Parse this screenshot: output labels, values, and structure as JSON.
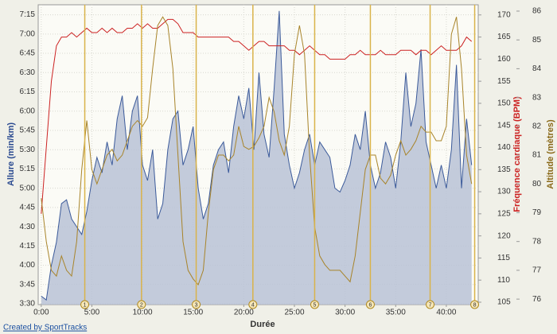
{
  "chart_data": {
    "type": "line",
    "grid": true,
    "xlabel": "Durée",
    "ylabel": "Allure (min/km)",
    "y2label": "Fréquence cardiaque (BPM)",
    "y3label": "Altitude (mètres)",
    "footer": "Created by SportTracks",
    "xlim": [
      -0.3,
      43.15
    ],
    "xticks": [
      {
        "value": 0,
        "label": "0:00"
      },
      {
        "value": 5,
        "label": "5:00"
      },
      {
        "value": 10,
        "label": "10:00"
      },
      {
        "value": 15,
        "label": "15:00"
      },
      {
        "value": 20,
        "label": "20:00"
      },
      {
        "value": 25,
        "label": "25:00"
      },
      {
        "value": 30,
        "label": "30:00"
      },
      {
        "value": 35,
        "label": "35:00"
      },
      {
        "value": 40,
        "label": "40:00"
      }
    ],
    "ylim": [
      3.49,
      7.38
    ],
    "yticks": [
      {
        "value": 3.5,
        "label": "3:30"
      },
      {
        "value": 3.75,
        "label": "3:45"
      },
      {
        "value": 4,
        "label": "4:00"
      },
      {
        "value": 4.25,
        "label": "4:15"
      },
      {
        "value": 4.5,
        "label": "4:30"
      },
      {
        "value": 4.75,
        "label": "4:45"
      },
      {
        "value": 5,
        "label": "5:00"
      },
      {
        "value": 5.25,
        "label": "5:15"
      },
      {
        "value": 5.5,
        "label": "5:30"
      },
      {
        "value": 5.75,
        "label": "5:45"
      },
      {
        "value": 6,
        "label": "6:00"
      },
      {
        "value": 6.25,
        "label": "6:15"
      },
      {
        "value": 6.5,
        "label": "6:30"
      },
      {
        "value": 6.75,
        "label": "6:45"
      },
      {
        "value": 7,
        "label": "7:00"
      },
      {
        "value": 7.25,
        "label": "7:15"
      }
    ],
    "y2lim": [
      104.46,
      172.3
    ],
    "y2ticks": [
      105,
      110,
      115,
      120,
      125,
      130,
      135,
      140,
      145,
      150,
      155,
      160,
      165,
      170
    ],
    "y3lim": [
      75.81,
      86.22
    ],
    "y3ticks": [
      76,
      77,
      78,
      79,
      80,
      81,
      82,
      83,
      84,
      85,
      86
    ],
    "x": [
      0,
      0.5,
      1,
      1.5,
      2,
      2.5,
      3,
      3.5,
      4,
      4.5,
      5,
      5.5,
      6,
      6.5,
      7,
      7.5,
      8,
      8.5,
      9,
      9.5,
      10,
      10.5,
      11,
      11.5,
      12,
      12.5,
      13,
      13.5,
      14,
      14.5,
      15,
      15.5,
      16,
      16.5,
      17,
      17.5,
      18,
      18.5,
      19,
      19.5,
      20,
      20.5,
      21,
      21.5,
      22,
      22.5,
      23,
      23.5,
      24,
      24.5,
      25,
      25.5,
      26,
      26.5,
      27,
      27.5,
      28,
      28.5,
      29,
      29.5,
      30,
      30.5,
      31,
      31.5,
      32,
      32.5,
      33,
      33.5,
      34,
      34.5,
      35,
      35.5,
      36,
      36.5,
      37,
      37.5,
      38,
      38.5,
      39,
      39.5,
      40,
      40.5,
      41,
      41.5,
      42,
      42.5
    ],
    "series": [
      {
        "color": "#3b5a9a",
        "fill": "#b9c2d6",
        "axis": "y",
        "values": [
          3.6,
          3.55,
          4.0,
          4.3,
          4.8,
          4.85,
          4.6,
          4.5,
          4.4,
          4.7,
          5.1,
          5.4,
          5.2,
          5.6,
          5.3,
          5.9,
          6.2,
          5.5,
          6.0,
          6.2,
          5.3,
          5.1,
          5.5,
          4.6,
          4.8,
          5.5,
          5.9,
          6.0,
          5.3,
          5.5,
          5.8,
          5.0,
          4.6,
          4.8,
          5.3,
          5.5,
          5.6,
          5.2,
          5.8,
          6.2,
          5.9,
          6.3,
          5.5,
          6.5,
          5.7,
          5.4,
          6.3,
          7.3,
          5.7,
          5.3,
          5.0,
          5.2,
          5.5,
          5.7,
          5.3,
          5.6,
          5.5,
          5.4,
          5.0,
          4.95,
          5.1,
          5.3,
          5.7,
          5.5,
          6.0,
          5.3,
          5.0,
          5.2,
          5.6,
          5.4,
          5.0,
          5.6,
          6.5,
          5.8,
          6.1,
          6.8,
          5.6,
          5.3,
          5.0,
          5.3,
          5.0,
          5.5,
          6.6,
          5.0,
          5.9,
          5.3
        ]
      },
      {
        "color": "#cc2222",
        "axis": "y2",
        "values": [
          125,
          140,
          155,
          163,
          165,
          165,
          166,
          165,
          166,
          167,
          166,
          166,
          167,
          166,
          167,
          166,
          166,
          167,
          167,
          168,
          167,
          168,
          167,
          167,
          168,
          169,
          169,
          168,
          166,
          166,
          166,
          165,
          165,
          165,
          165,
          165,
          165,
          165,
          164,
          164,
          163,
          162,
          163,
          164,
          164,
          163,
          163,
          163,
          163,
          162,
          162,
          161,
          162,
          163,
          162,
          161,
          161,
          160,
          160,
          160,
          160,
          161,
          161,
          162,
          161,
          161,
          161,
          162,
          161,
          161,
          161,
          162,
          162,
          162,
          161,
          162,
          162,
          161,
          162,
          163,
          162,
          162,
          162,
          163,
          165,
          164
        ]
      },
      {
        "color": "#a8842a",
        "axis": "y3",
        "values": [
          79.5,
          78,
          77,
          76.8,
          77.5,
          77,
          76.8,
          78,
          80.5,
          82.2,
          80.5,
          80,
          80.5,
          81,
          81.2,
          80.8,
          81,
          81.5,
          82,
          82.2,
          82,
          82.3,
          84,
          85.5,
          85.8,
          85.5,
          84,
          81,
          78,
          77,
          76.7,
          76.5,
          77,
          79,
          80.5,
          81,
          81,
          80.8,
          81,
          82,
          81.3,
          81.2,
          81.3,
          81.6,
          82,
          83,
          82.5,
          81.5,
          81,
          82,
          84.5,
          85.5,
          84.5,
          81,
          78.5,
          77.5,
          77.2,
          77,
          77,
          77,
          76.8,
          76.6,
          77.5,
          79,
          80.5,
          81,
          81,
          80.2,
          80,
          80.3,
          81,
          81.5,
          81,
          81.2,
          81.5,
          82,
          81.8,
          81.8,
          81.5,
          81.5,
          82,
          85.2,
          85.8,
          84,
          81,
          80
        ]
      }
    ],
    "lap_markers": {
      "x": [
        4.3,
        9.9,
        15.3,
        20.9,
        27.0,
        32.5,
        38.4,
        42.8
      ],
      "labels": [
        1,
        2,
        3,
        4,
        5,
        6,
        7,
        8
      ]
    }
  }
}
